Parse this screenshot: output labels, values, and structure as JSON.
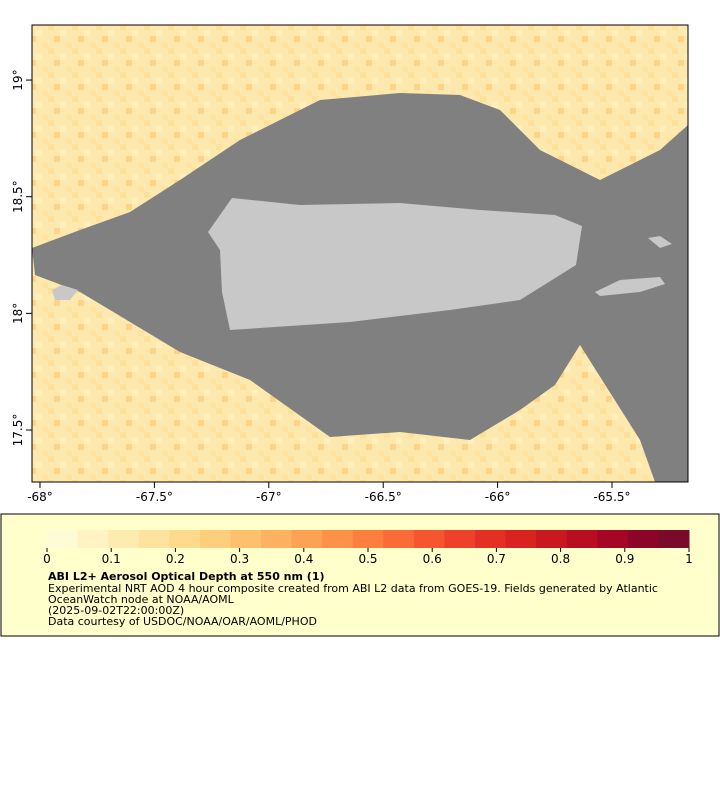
{
  "map": {
    "lon_ticks": [
      {
        "value": -68,
        "label": "-68°"
      },
      {
        "value": -67.5,
        "label": "-67.5°"
      },
      {
        "value": -67,
        "label": "-67°"
      },
      {
        "value": -66.5,
        "label": "-66.5°"
      },
      {
        "value": -66,
        "label": "-66°"
      },
      {
        "value": -65.5,
        "label": "-65.5°"
      }
    ],
    "lat_ticks": [
      {
        "value": 17.5,
        "label": "17.5°"
      },
      {
        "value": 18,
        "label": "18°"
      },
      {
        "value": 18.5,
        "label": "18.5°"
      },
      {
        "value": 19,
        "label": "19°"
      }
    ]
  },
  "colorbar": {
    "ticks": [
      0,
      0.1,
      0.2,
      0.3,
      0.4,
      0.5,
      0.6,
      0.7,
      0.8,
      0.9,
      1
    ],
    "colors": [
      "#fffbd6",
      "#fff3c4",
      "#feebb0",
      "#fee39e",
      "#fedb8c",
      "#fdcf7c",
      "#fdc16e",
      "#fdb261",
      "#fca255",
      "#fc9149",
      "#fc7f40",
      "#fb6b37",
      "#f5552f",
      "#ee4129",
      "#e42f24",
      "#d92321",
      "#ca1820",
      "#b90e22",
      "#a40624",
      "#8c0427",
      "#7a0a2c"
    ]
  },
  "caption": {
    "title": "ABI L2+ Aerosol Optical Depth at 550 nm (1)",
    "lines": [
      "Experimental NRT AOD 4 hour composite created from ABI L2 data from GOES-19. Fields generated by Atlantic",
      "OceanWatch node at NOAA/AOML",
      "(2025-09-02T22:00:00Z)",
      "Data courtesy of USDOC/NOAA/OAR/AOML/PHOD"
    ]
  }
}
